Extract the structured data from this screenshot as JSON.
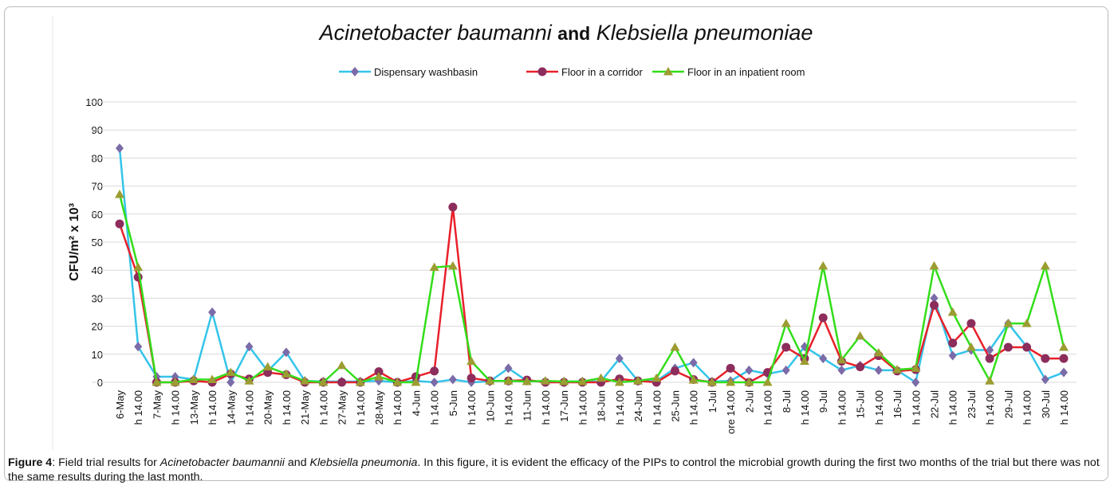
{
  "chart_data": {
    "type": "line",
    "title": [
      "Acinetobacter baumanni",
      "and",
      "Klebsiella pneumoniae"
    ],
    "y_label": "CFU/m² x 10³",
    "categories": [
      "6-May",
      "h 14.00",
      "7-May",
      "h 14.00",
      "13-May",
      "h 14.00",
      "14-May",
      "h 14.00",
      "20-May",
      "h 14.00",
      "21-May",
      "h 14.00",
      "27-May",
      "h 14.00",
      "28-May",
      "h 14.00",
      "4-Jun",
      "h 14.00",
      "5-Jun",
      "h 14.00",
      "10-Jun",
      "h 14.00",
      "11-Jun",
      "h 14.00",
      "17-Jun",
      "h 14.00",
      "18-Jun",
      "h 14.00",
      "24-Jun",
      "h 14.00",
      "25-Jun",
      "h 14.00",
      "1-Jul",
      "ore 14.00",
      "2-Jul",
      "h 14.00",
      "8-Jul",
      "h 14.00",
      "9-Jul",
      "h 14.00",
      "15-Jul",
      "h 14.00",
      "16-Jul",
      "h 14.00",
      "22-Jul",
      "h 14.00",
      "23-Jul",
      "h 14.00",
      "29-Jul",
      "h 14.00",
      "30-Jul",
      "h 14.00"
    ],
    "series": [
      {
        "name": "Dispensary washbasin",
        "color": "#35c4ea",
        "marker_color": "#7b6ba8",
        "marker": "diamond",
        "values": [
          83.5,
          12.7,
          2,
          2,
          1,
          25,
          0,
          12.7,
          4,
          10.7,
          0.5,
          0.3,
          0.3,
          0.3,
          0.5,
          0,
          0.5,
          0,
          1,
          0,
          0.3,
          5,
          0.5,
          0.3,
          0.3,
          0.3,
          0.3,
          8.5,
          0.5,
          0.5,
          5,
          7,
          0.3,
          0.5,
          4.3,
          3,
          4.3,
          12.7,
          8.5,
          4.3,
          6,
          4.3,
          4.3,
          0,
          30,
          9.5,
          11.5,
          11.5,
          21,
          12.7,
          1,
          3.5
        ]
      },
      {
        "name": "Floor in a corridor",
        "color": "#e8202a",
        "marker_color": "#8c2d5c",
        "marker": "circle",
        "values": [
          56.5,
          37.5,
          0,
          0,
          0.5,
          0,
          3,
          1.2,
          3.5,
          2.7,
          0,
          0,
          0,
          0,
          3.8,
          0,
          2,
          4,
          62.5,
          1.5,
          0.5,
          0.5,
          0.8,
          0,
          0,
          0,
          0,
          1.2,
          0.5,
          0,
          4,
          1,
          0,
          5,
          0,
          3.5,
          12.5,
          8.5,
          23,
          7.5,
          5.5,
          9.5,
          4,
          4.5,
          27.5,
          14,
          21,
          8.5,
          12.5,
          12.5,
          8.5,
          8.5
        ]
      },
      {
        "name": "Floor in an inpatient room",
        "color": "#33dd1a",
        "marker_color": "#9c9c32",
        "marker": "triangle",
        "values": [
          67,
          41,
          0,
          0,
          1,
          1,
          3.5,
          0.5,
          5.5,
          3,
          0.5,
          0,
          6,
          0,
          2,
          0,
          0,
          41,
          41.5,
          7.5,
          0.5,
          0.5,
          0.3,
          0.5,
          0.3,
          0.3,
          1.5,
          0,
          0.5,
          1.5,
          12.5,
          0.8,
          0,
          0,
          0,
          0,
          21,
          7.5,
          41.5,
          8,
          16.5,
          10.5,
          4.5,
          5,
          41.5,
          25,
          12.5,
          0.5,
          21,
          21,
          41.5,
          12.5
        ]
      }
    ],
    "ylim": [
      0,
      100
    ],
    "yticks": [
      0,
      10,
      20,
      30,
      40,
      50,
      60,
      70,
      80,
      90,
      100
    ],
    "grid": true,
    "legend": "top"
  },
  "caption": [
    "Figure 4",
    ": Field trial results for ",
    "Acinetobacter baumannii",
    " and ",
    "Klebsiella pneumonia",
    ". In this figure, it is evident the efficacy of the PIPs to control the microbial growth during the first two months of the trial but there was not the same results during the last month."
  ]
}
